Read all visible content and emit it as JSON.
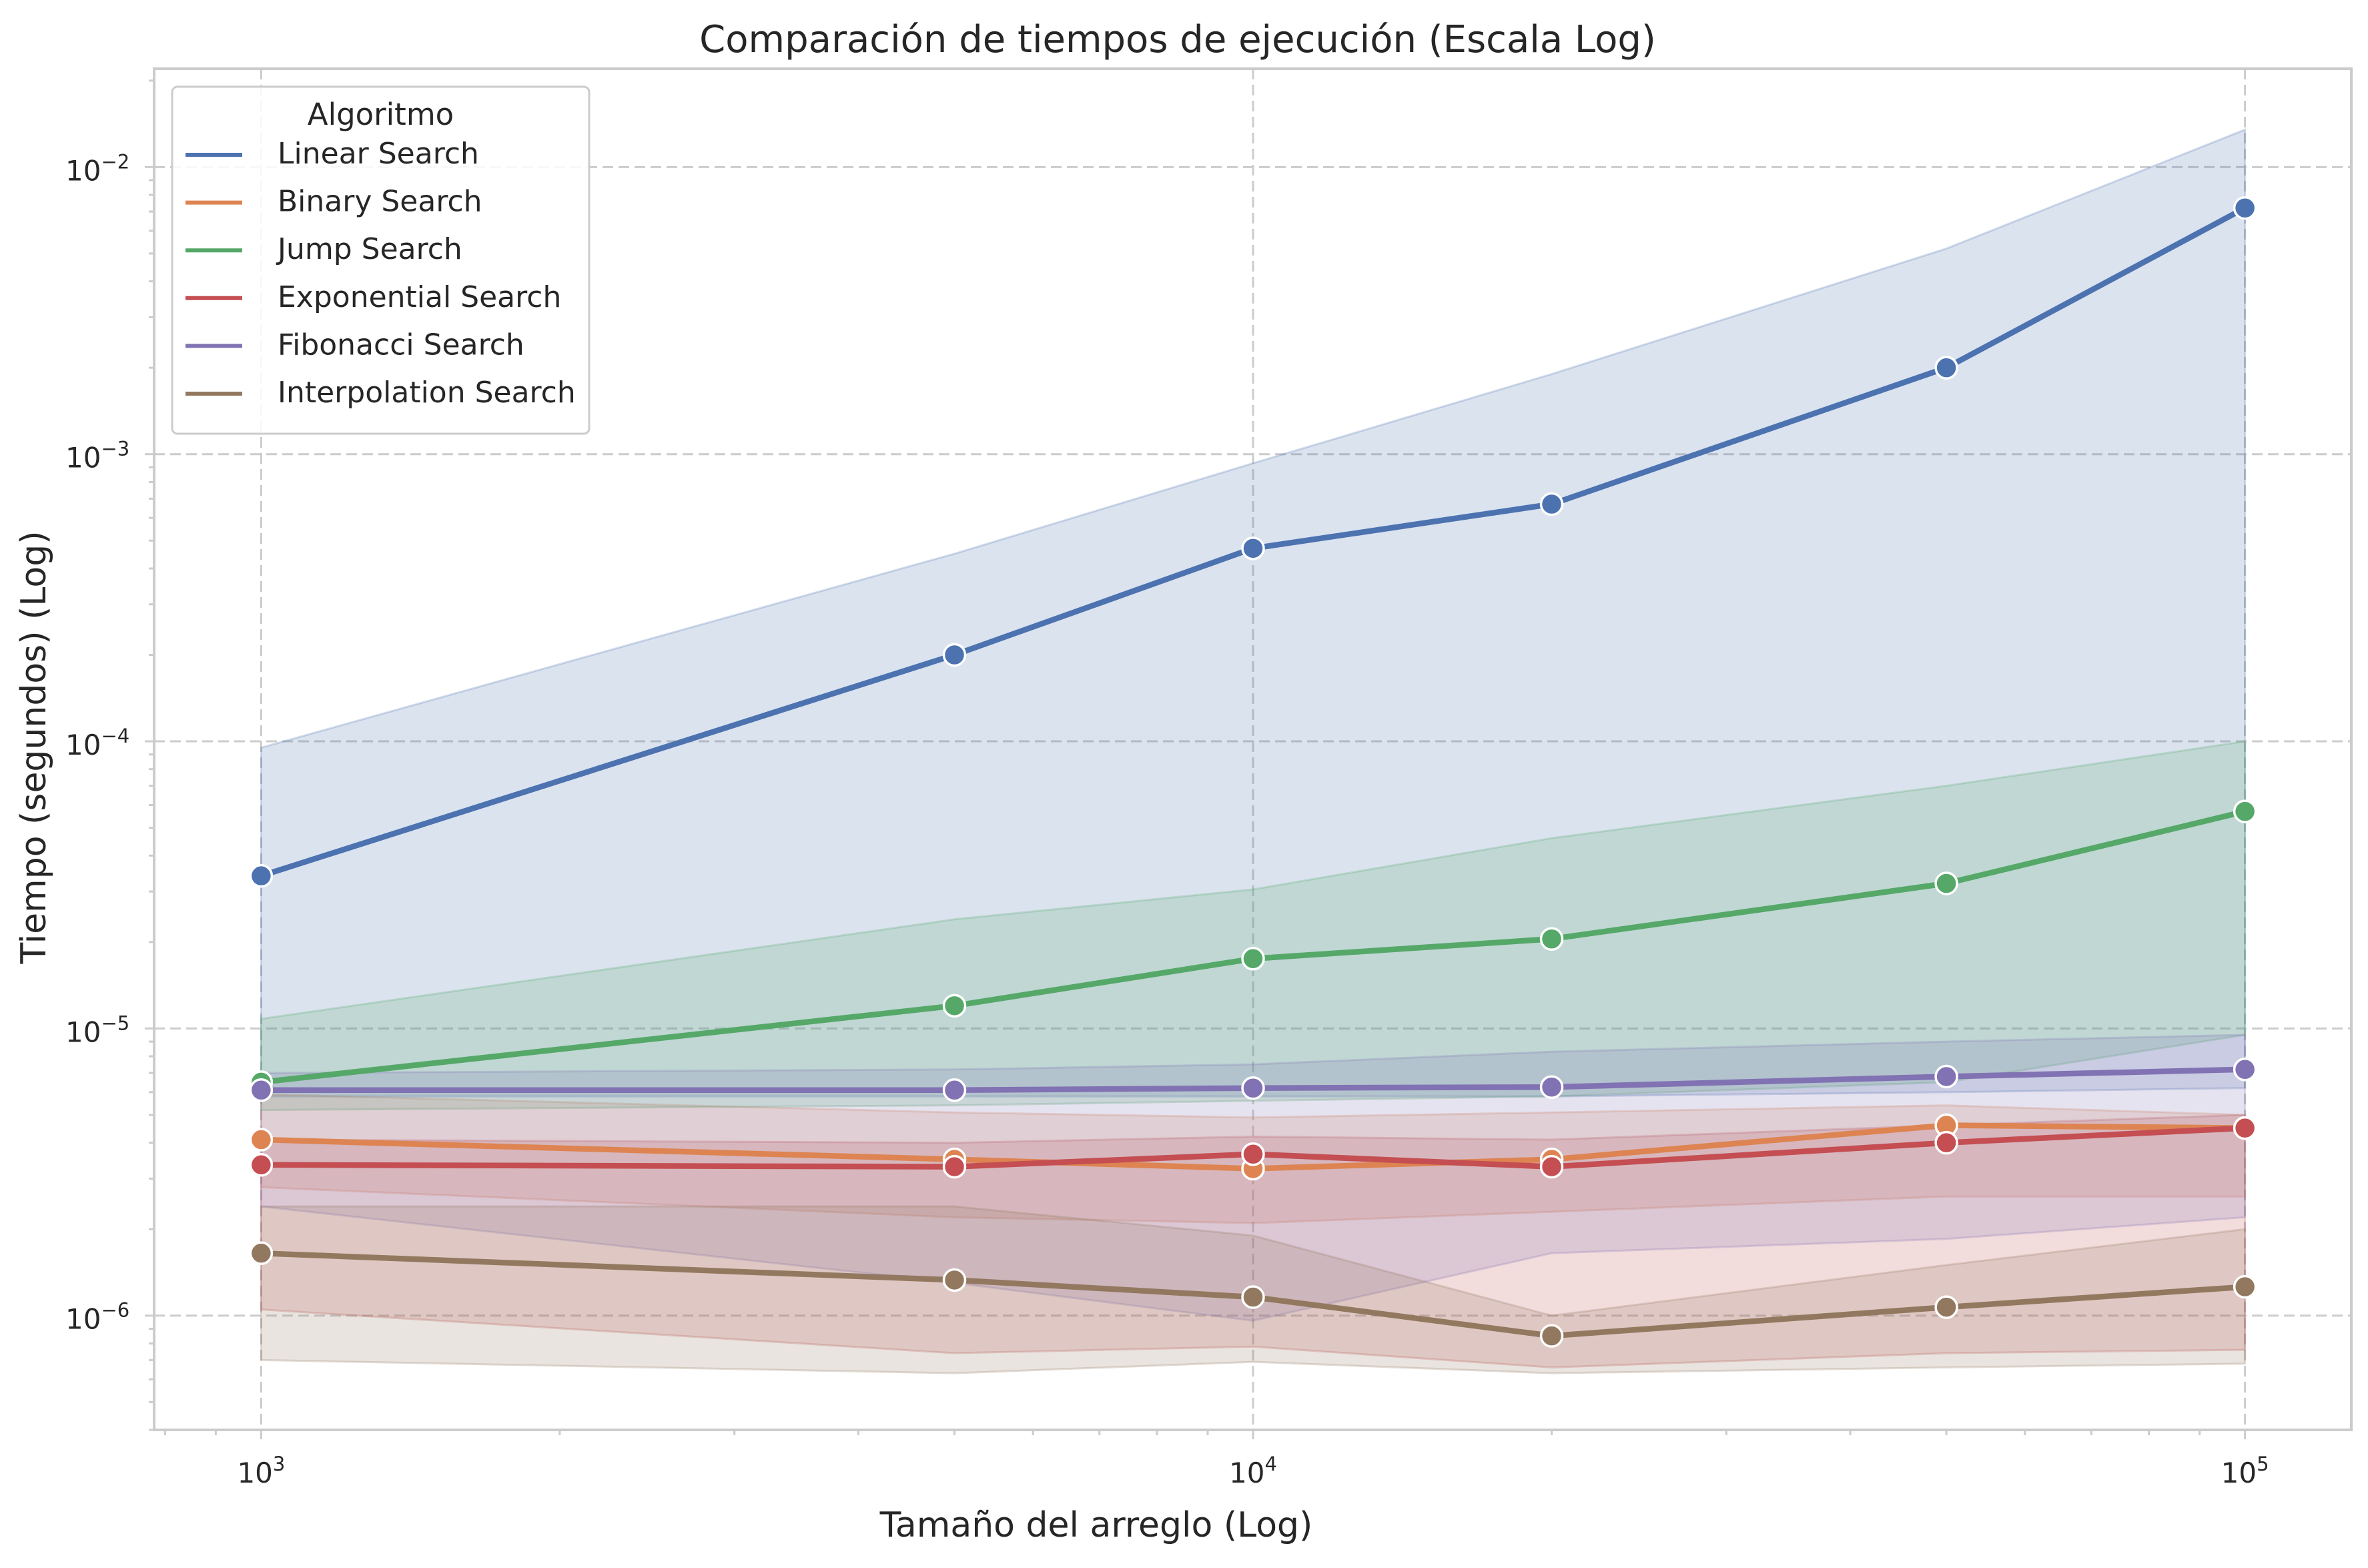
{
  "chart_data": {
    "type": "line",
    "title": "Comparación de tiempos de ejecución (Escala Log)",
    "xlabel": "Tamaño del arreglo (Log)",
    "ylabel": "Tiempo (segundos) (Log)",
    "xscale": "log",
    "yscale": "log",
    "xlim": [
      780,
      128000
    ],
    "ylim": [
      4e-07,
      0.022
    ],
    "grid": true,
    "legend_title": "Algoritmo",
    "legend_position": "upper-left",
    "x_ticks": [
      {
        "value": 1000,
        "base": "10",
        "exp": "3"
      },
      {
        "value": 10000,
        "base": "10",
        "exp": "4"
      },
      {
        "value": 100000,
        "base": "10",
        "exp": "5"
      }
    ],
    "y_ticks": [
      {
        "value": 1e-06,
        "base": "10",
        "exp": "−6"
      },
      {
        "value": 1e-05,
        "base": "10",
        "exp": "−5"
      },
      {
        "value": 0.0001,
        "base": "10",
        "exp": "−4"
      },
      {
        "value": 0.001,
        "base": "10",
        "exp": "−3"
      },
      {
        "value": 0.01,
        "base": "10",
        "exp": "−2"
      }
    ],
    "x": [
      1000,
      5000,
      10000,
      20000,
      50000,
      100000
    ],
    "series": [
      {
        "name": "Linear Search",
        "color": "#4c72b0",
        "values": [
          3.4e-05,
          0.0002,
          0.00047,
          0.00067,
          0.002,
          0.0072
        ],
        "ci_upper": [
          9.5e-05,
          0.00045,
          0.00093,
          0.0019,
          0.0052,
          0.0135
        ],
        "ci_lower": [
          5.8e-06,
          5.8e-06,
          5.8e-06,
          5.8e-06,
          6e-06,
          6.2e-06
        ]
      },
      {
        "name": "Binary Search",
        "color": "#dd8452",
        "values": [
          4.1e-06,
          3.5e-06,
          3.25e-06,
          3.5e-06,
          4.6e-06,
          4.5e-06
        ],
        "ci_upper": [
          5.9e-06,
          5.1e-06,
          4.9e-06,
          5.1e-06,
          5.4e-06,
          5e-06
        ],
        "ci_lower": [
          2.8e-06,
          2.2e-06,
          2.1e-06,
          2.3e-06,
          2.6e-06,
          2.6e-06
        ]
      },
      {
        "name": "Jump Search",
        "color": "#55a868",
        "values": [
          6.5e-06,
          1.2e-05,
          1.75e-05,
          2.05e-05,
          3.2e-05,
          5.7e-05
        ],
        "ci_upper": [
          1.08e-05,
          2.4e-05,
          3.05e-05,
          4.6e-05,
          7e-05,
          0.0001
        ],
        "ci_lower": [
          5.2e-06,
          5.4e-06,
          5.6e-06,
          5.8e-06,
          6.5e-06,
          9.5e-06
        ]
      },
      {
        "name": "Exponential Search",
        "color": "#c44e52",
        "values": [
          3.35e-06,
          3.3e-06,
          3.65e-06,
          3.3e-06,
          4e-06,
          4.5e-06
        ],
        "ci_upper": [
          4.1e-06,
          4e-06,
          4.2e-06,
          4.1e-06,
          4.6e-06,
          5e-06
        ],
        "ci_lower": [
          1.05e-06,
          7.4e-07,
          7.8e-07,
          6.6e-07,
          7.4e-07,
          7.6e-07
        ]
      },
      {
        "name": "Fibonacci Search",
        "color": "#8172b3",
        "values": [
          6.1e-06,
          6.1e-06,
          6.2e-06,
          6.25e-06,
          6.8e-06,
          7.2e-06
        ],
        "ci_upper": [
          7e-06,
          7.2e-06,
          7.5e-06,
          8.3e-06,
          9e-06,
          9.5e-06
        ],
        "ci_lower": [
          2.4e-06,
          1.3e-06,
          9.6e-07,
          1.65e-06,
          1.85e-06,
          2.2e-06
        ]
      },
      {
        "name": "Interpolation Search",
        "color": "#937860",
        "values": [
          1.65e-06,
          1.33e-06,
          1.16e-06,
          8.5e-07,
          1.07e-06,
          1.26e-06
        ],
        "ci_upper": [
          2.4e-06,
          2.4e-06,
          1.9e-06,
          1e-06,
          1.5e-06,
          2e-06
        ],
        "ci_lower": [
          7e-07,
          6.3e-07,
          6.9e-07,
          6.3e-07,
          6.6e-07,
          6.8e-07
        ]
      }
    ]
  }
}
